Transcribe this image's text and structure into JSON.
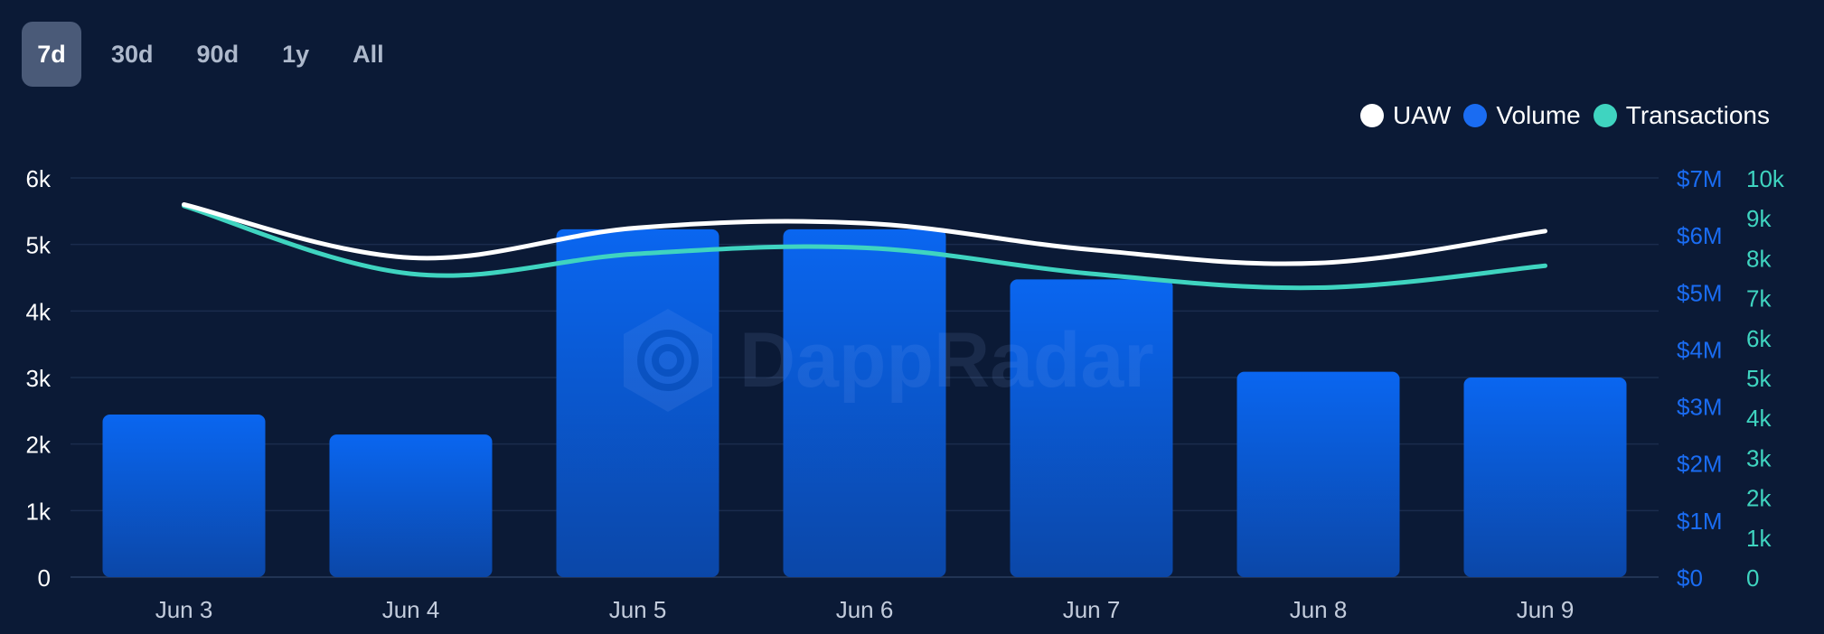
{
  "range_tabs": [
    {
      "label": "7d",
      "active": true
    },
    {
      "label": "30d",
      "active": false
    },
    {
      "label": "90d",
      "active": false
    },
    {
      "label": "1y",
      "active": false
    },
    {
      "label": "All",
      "active": false
    }
  ],
  "legend": [
    {
      "label": "UAW",
      "color": "#ffffff"
    },
    {
      "label": "Volume",
      "color": "#1a6cf2"
    },
    {
      "label": "Transactions",
      "color": "#3fd4c0"
    }
  ],
  "watermark": "DappRadar",
  "chart_data": {
    "type": "bar",
    "categories": [
      "Jun 3",
      "Jun 4",
      "Jun 5",
      "Jun 6",
      "Jun 7",
      "Jun 8",
      "Jun 9"
    ],
    "series": [
      {
        "name": "Volume",
        "type": "bar",
        "axis": "right-usd",
        "values": [
          2850000,
          2500000,
          6100000,
          6100000,
          5220000,
          3600000,
          3500000
        ],
        "color": "#1a6cf2"
      },
      {
        "name": "UAW",
        "type": "line",
        "axis": "left",
        "values": [
          5600,
          4800,
          5250,
          5320,
          4920,
          4720,
          5200
        ],
        "color": "#ffffff"
      },
      {
        "name": "Transactions",
        "type": "line",
        "axis": "right-count",
        "values": [
          9300,
          7600,
          8100,
          8250,
          7600,
          7250,
          7800
        ],
        "color": "#3fd4c0"
      }
    ],
    "y_left": {
      "ticks": [
        "0",
        "1k",
        "2k",
        "3k",
        "4k",
        "5k",
        "6k"
      ],
      "min": 0,
      "max": 6000
    },
    "y_right_usd": {
      "ticks": [
        "$0",
        "$1M",
        "$2M",
        "$3M",
        "$4M",
        "$5M",
        "$6M",
        "$7M"
      ],
      "min": 0,
      "max": 7000000
    },
    "y_right_count": {
      "ticks": [
        "0",
        "1k",
        "2k",
        "3k",
        "4k",
        "5k",
        "6k",
        "7k",
        "8k",
        "9k",
        "10k"
      ],
      "min": 0,
      "max": 10000
    },
    "grid": true,
    "legend_position": "top-right"
  }
}
